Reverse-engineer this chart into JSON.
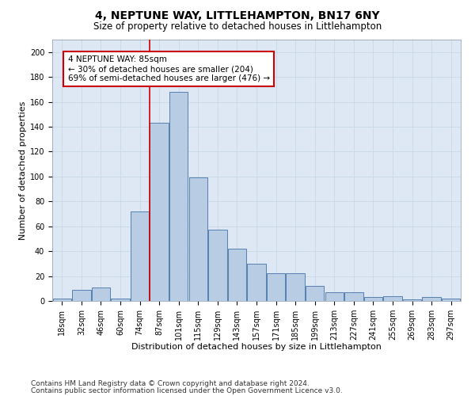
{
  "title": "4, NEPTUNE WAY, LITTLEHAMPTON, BN17 6NY",
  "subtitle": "Size of property relative to detached houses in Littlehampton",
  "xlabel": "Distribution of detached houses by size in Littlehampton",
  "ylabel": "Number of detached properties",
  "categories": [
    "18sqm",
    "32sqm",
    "46sqm",
    "60sqm",
    "74sqm",
    "87sqm",
    "101sqm",
    "115sqm",
    "129sqm",
    "143sqm",
    "157sqm",
    "171sqm",
    "185sqm",
    "199sqm",
    "213sqm",
    "227sqm",
    "241sqm",
    "255sqm",
    "269sqm",
    "283sqm",
    "297sqm"
  ],
  "values": [
    2,
    9,
    11,
    2,
    72,
    143,
    168,
    99,
    57,
    42,
    30,
    22,
    22,
    12,
    7,
    7,
    3,
    4,
    1,
    3,
    2
  ],
  "bar_color": "#b8cce4",
  "bar_edge_color": "#5580b0",
  "property_label": "4 NEPTUNE WAY: 85sqm",
  "annotation_line1": "← 30% of detached houses are smaller (204)",
  "annotation_line2": "69% of semi-detached houses are larger (476) →",
  "annotation_box_color": "#ffffff",
  "annotation_box_edge": "#cc0000",
  "vline_color": "#cc0000",
  "vline_x_index": 5,
  "ylim": [
    0,
    210
  ],
  "yticks": [
    0,
    20,
    40,
    60,
    80,
    100,
    120,
    140,
    160,
    180,
    200
  ],
  "grid_color": "#c8d8e8",
  "bg_color": "#dde8f4",
  "footnote1": "Contains HM Land Registry data © Crown copyright and database right 2024.",
  "footnote2": "Contains public sector information licensed under the Open Government Licence v3.0.",
  "title_fontsize": 10,
  "subtitle_fontsize": 8.5,
  "xlabel_fontsize": 8,
  "ylabel_fontsize": 8,
  "tick_fontsize": 7,
  "footnote_fontsize": 6.5,
  "annot_fontsize": 7.5
}
